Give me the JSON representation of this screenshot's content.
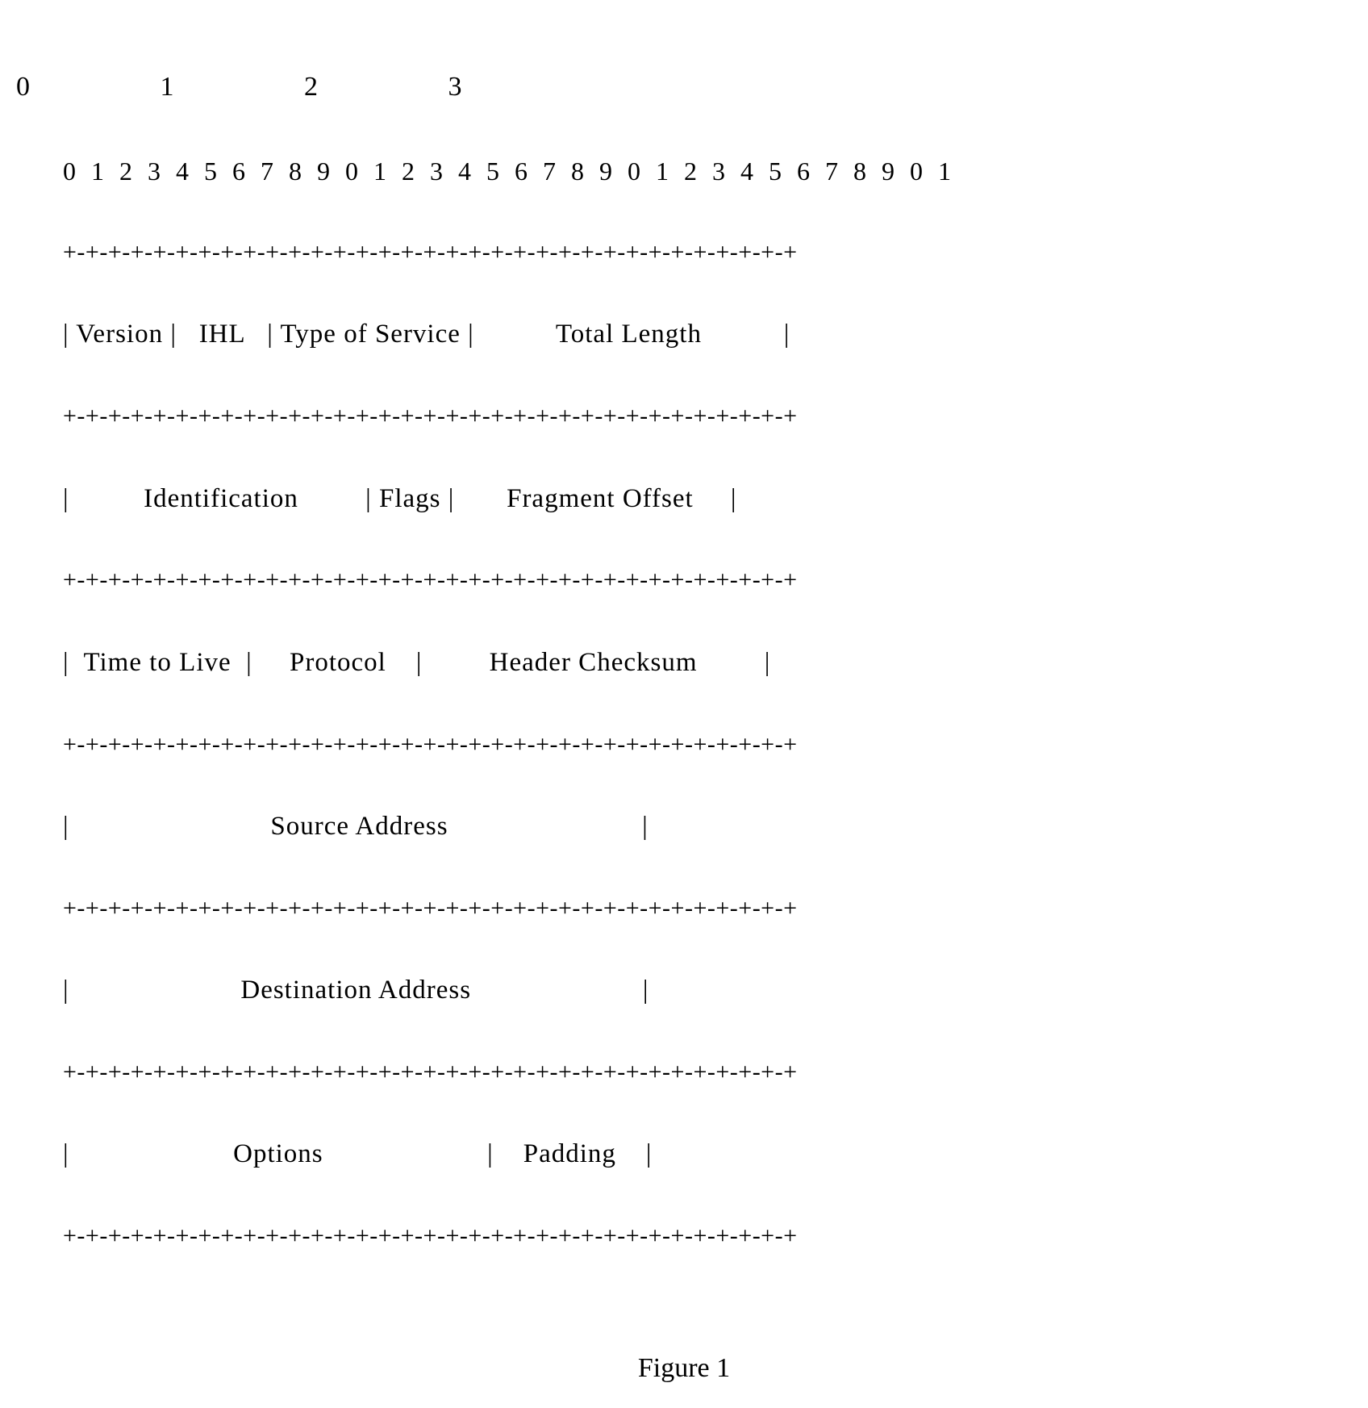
{
  "diagram": {
    "type": "ascii-packet-header",
    "background_color": "#ffffff",
    "text_color": "#000000",
    "font_family": "Book Antiqua, Palatino, serif",
    "font_size_pt": 24,
    "line_height": 1.6,
    "bit_ruler_major": "0                   1                   2                   3",
    "bit_ruler_minor": "0 1 2 3 4 5 6 7 8 9 0 1 2 3 4 5 6 7 8 9 0 1 2 3 4 5 6 7 8 9 0 1",
    "divider": "+-+-+-+-+-+-+-+-+-+-+-+-+-+-+-+-+-+-+-+-+-+-+-+-+-+-+-+-+-+-+-+-+",
    "rows": [
      "| Version |   IHL   | Type of Service |           Total Length           |",
      "|          Identification         | Flags |       Fragment Offset     |",
      "|  Time to Live  |     Protocol    |         Header Checksum         |",
      "|                           Source Address                          |",
      "|                       Destination Address                       |",
      "|                      Options                      |    Padding    |"
    ],
    "fields": [
      {
        "name": "Version",
        "bits": 4
      },
      {
        "name": "IHL",
        "bits": 4
      },
      {
        "name": "Type of Service",
        "bits": 8
      },
      {
        "name": "Total Length",
        "bits": 16
      },
      {
        "name": "Identification",
        "bits": 16
      },
      {
        "name": "Flags",
        "bits": 3
      },
      {
        "name": "Fragment Offset",
        "bits": 13
      },
      {
        "name": "Time to Live",
        "bits": 8
      },
      {
        "name": "Protocol",
        "bits": 8
      },
      {
        "name": "Header Checksum",
        "bits": 16
      },
      {
        "name": "Source Address",
        "bits": 32
      },
      {
        "name": "Destination Address",
        "bits": 32
      },
      {
        "name": "Options",
        "bits": 24
      },
      {
        "name": "Padding",
        "bits": 8
      }
    ]
  },
  "caption": "Figure 1"
}
